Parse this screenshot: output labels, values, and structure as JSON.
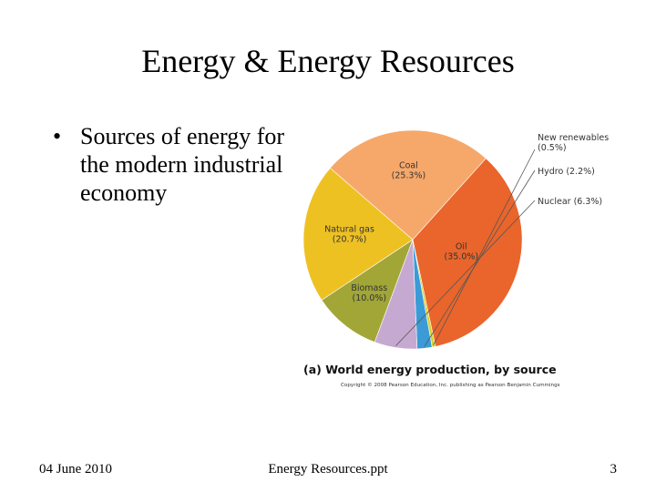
{
  "slide": {
    "title": "Energy & Energy Resources",
    "bullets": [
      "Sources of energy for the modern industrial economy"
    ]
  },
  "footer": {
    "date": "04 June 2010",
    "file": "Energy Resources.ppt",
    "page": "3"
  },
  "chart_data": {
    "type": "pie",
    "title": "(a) World energy production, by source",
    "credit": "Copyright © 2008 Pearson Education, Inc. publishing as Pearson Benjamin Cummings",
    "slices": [
      {
        "name": "Oil",
        "value_label": "(35.0%)",
        "value": 35.0,
        "color": "#e9652b",
        "label_placement": "inside"
      },
      {
        "name": "New renewables",
        "value_label": "(0.5%)",
        "value": 0.5,
        "color": "#d9d230",
        "label_placement": "callout"
      },
      {
        "name": "Hydro",
        "value_label": "(2.2%)",
        "value": 2.2,
        "color": "#3a9bd6",
        "label_placement": "callout"
      },
      {
        "name": "Nuclear",
        "value_label": "(6.3%)",
        "value": 6.3,
        "color": "#c6a9d1",
        "label_placement": "callout"
      },
      {
        "name": "Biomass",
        "value_label": "(10.0%)",
        "value": 10.0,
        "color": "#a1a637",
        "label_placement": "inside"
      },
      {
        "name": "Natural gas",
        "value_label": "(20.7%)",
        "value": 20.7,
        "color": "#eec123",
        "label_placement": "inside"
      },
      {
        "name": "Coal",
        "value_label": "(25.3%)",
        "value": 25.3,
        "color": "#f6a86a",
        "label_placement": "inside"
      }
    ]
  }
}
